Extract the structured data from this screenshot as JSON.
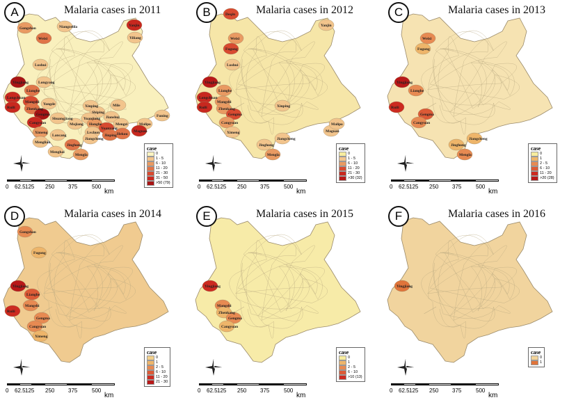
{
  "scale_labels": [
    "0",
    "62.5",
    "125",
    "250",
    "375",
    "500"
  ],
  "scale_unit": "km",
  "legend_title": "case",
  "panels": [
    {
      "letter": "A",
      "title": "Malaria cases in 2011",
      "base": "#f9f0bd",
      "legend": [
        {
          "label": "0",
          "color": "#fbf3c0"
        },
        {
          "label": "1 - 5",
          "color": "#f2c48c"
        },
        {
          "label": "6 - 10",
          "color": "#e99a62"
        },
        {
          "label": "11 - 20",
          "color": "#e07448"
        },
        {
          "label": "21 - 30",
          "color": "#d84a30"
        },
        {
          "label": "31 - 50",
          "color": "#c8281f"
        },
        {
          "label": ">50 (79)",
          "color": "#a81414"
        }
      ],
      "places": [
        {
          "name": "Gongshan",
          "fill": "#e99a62"
        },
        {
          "name": "Weixi",
          "fill": "#e07448"
        },
        {
          "name": "Niangzelila",
          "fill": "#f2c48c"
        },
        {
          "name": "Lushui",
          "fill": "#f2c48c"
        },
        {
          "name": "Longyang",
          "fill": "#f2c48c"
        },
        {
          "name": "Yingjiang",
          "fill": "#a81414"
        },
        {
          "name": "Lianghe",
          "fill": "#e07448"
        },
        {
          "name": "Longchuan",
          "fill": "#c8281f"
        },
        {
          "name": "Mangshi",
          "fill": "#d84a30"
        },
        {
          "name": "Ruili",
          "fill": "#c8281f"
        },
        {
          "name": "Zhenkang",
          "fill": "#e07448"
        },
        {
          "name": "Yongde",
          "fill": "#f2c48c"
        },
        {
          "name": "Gengma",
          "fill": "#a81414"
        },
        {
          "name": "Cangyuan",
          "fill": "#c8281f"
        },
        {
          "name": "Shuangjiang",
          "fill": "#f2c48c"
        },
        {
          "name": "Ximeng",
          "fill": "#e99a62"
        },
        {
          "name": "Lancang",
          "fill": "#f2c48c"
        },
        {
          "name": "Menglian",
          "fill": "#f2c48c"
        },
        {
          "name": "Menghai",
          "fill": "#f2c48c"
        },
        {
          "name": "Jinghong",
          "fill": "#e07448"
        },
        {
          "name": "Mengla",
          "fill": "#e99a62"
        },
        {
          "name": "Xinping",
          "fill": "#f2c48c"
        },
        {
          "name": "Shiping",
          "fill": "#f2c48c"
        },
        {
          "name": "Yuanjiang",
          "fill": "#f2c48c"
        },
        {
          "name": "Mojiang",
          "fill": "#f2c48c"
        },
        {
          "name": "Honghe",
          "fill": "#e99a62"
        },
        {
          "name": "Jianshui",
          "fill": "#f2c48c"
        },
        {
          "name": "Mile",
          "fill": "#f2c48c"
        },
        {
          "name": "Mengzi",
          "fill": "#f2c48c"
        },
        {
          "name": "Yuanyang",
          "fill": "#d84a30"
        },
        {
          "name": "Lvchun",
          "fill": "#f2c48c"
        },
        {
          "name": "Jiangcheng",
          "fill": "#f2c48c"
        },
        {
          "name": "Jinping",
          "fill": "#e07448"
        },
        {
          "name": "Hekou",
          "fill": "#e07448"
        },
        {
          "name": "Malipo",
          "fill": "#f2c48c"
        },
        {
          "name": "Funing",
          "fill": "#f2c48c"
        },
        {
          "name": "Maguan",
          "fill": "#c8281f"
        },
        {
          "name": "Yanjin",
          "fill": "#c8281f"
        },
        {
          "name": "Yiliang",
          "fill": "#f2c48c"
        }
      ]
    },
    {
      "letter": "B",
      "title": "Malaria cases in 2012",
      "base": "#f6e6a8",
      "legend": [
        {
          "label": "0",
          "color": "#f7ec9e"
        },
        {
          "label": "1 - 5",
          "color": "#f2c48c"
        },
        {
          "label": "6 - 10",
          "color": "#e99a62"
        },
        {
          "label": "11 - 20",
          "color": "#d84a30"
        },
        {
          "label": "21 - 30",
          "color": "#c8281f"
        },
        {
          "label": ">30 (32)",
          "color": "#b81818"
        }
      ],
      "places": [
        {
          "name": "Deqin",
          "fill": "#d84a30"
        },
        {
          "name": "Weixi",
          "fill": "#e99a62"
        },
        {
          "name": "Fugong",
          "fill": "#d84a30"
        },
        {
          "name": "Lushui",
          "fill": "#f2c48c"
        },
        {
          "name": "Yanjin",
          "fill": "#f2c48c"
        },
        {
          "name": "Yingjiang",
          "fill": "#b81818"
        },
        {
          "name": "Lianghe",
          "fill": "#e99a62"
        },
        {
          "name": "Longchuan",
          "fill": "#c8281f"
        },
        {
          "name": "Mangshi",
          "fill": "#e99a62"
        },
        {
          "name": "Ruili",
          "fill": "#c8281f"
        },
        {
          "name": "Zhenkang",
          "fill": "#e99a62"
        },
        {
          "name": "Gengma",
          "fill": "#d84a30"
        },
        {
          "name": "Cangyuan",
          "fill": "#e99a62"
        },
        {
          "name": "Ximeng",
          "fill": "#f2c48c"
        },
        {
          "name": "Xinping",
          "fill": "#f2c48c"
        },
        {
          "name": "Jiangcheng",
          "fill": "#f2c48c"
        },
        {
          "name": "Jinghong",
          "fill": "#f2c48c"
        },
        {
          "name": "Mengla",
          "fill": "#e99a62"
        },
        {
          "name": "Maguan",
          "fill": "#f2c48c"
        },
        {
          "name": "Malipo",
          "fill": "#f2c48c"
        }
      ]
    },
    {
      "letter": "C",
      "title": "Malaria cases in 2013",
      "base": "#f6e3b2",
      "legend": [
        {
          "label": "0",
          "color": "#f7ec9e"
        },
        {
          "label": "1",
          "color": "#eeb56a"
        },
        {
          "label": "2 - 5",
          "color": "#e78a52"
        },
        {
          "label": "6 - 10",
          "color": "#dc5a36"
        },
        {
          "label": "11 - 20",
          "color": "#cc2a20"
        },
        {
          "label": ">20 (28)",
          "color": "#b81818"
        }
      ],
      "places": [
        {
          "name": "Weixi",
          "fill": "#e78a52"
        },
        {
          "name": "Fugong",
          "fill": "#eeb56a"
        },
        {
          "name": "Yingjiang",
          "fill": "#b81818"
        },
        {
          "name": "Lianghe",
          "fill": "#e78a52"
        },
        {
          "name": "Ruili",
          "fill": "#cc2a20"
        },
        {
          "name": "Gengma",
          "fill": "#dc5a36"
        },
        {
          "name": "Cangyuan",
          "fill": "#e78a52"
        },
        {
          "name": "Jiangcheng",
          "fill": "#eeb56a"
        },
        {
          "name": "Jinghong",
          "fill": "#eeb56a"
        },
        {
          "name": "Mengla",
          "fill": "#e78a52"
        }
      ]
    },
    {
      "letter": "D",
      "title": "Malaria cases in 2014",
      "base": "#f0cb90",
      "legend": [
        {
          "label": "0",
          "color": "#f2cf8a"
        },
        {
          "label": "1",
          "color": "#eeb56a"
        },
        {
          "label": "2 - 5",
          "color": "#e78a52"
        },
        {
          "label": "6 - 10",
          "color": "#dc5a36"
        },
        {
          "label": "11 - 20",
          "color": "#cc2a20"
        },
        {
          "label": "21 - 30",
          "color": "#b81818"
        }
      ],
      "places": [
        {
          "name": "Gongshan",
          "fill": "#e78a52"
        },
        {
          "name": "Fugong",
          "fill": "#eeb56a"
        },
        {
          "name": "Yingjiang",
          "fill": "#b81818"
        },
        {
          "name": "Lianghe",
          "fill": "#dc5a36"
        },
        {
          "name": "Mangshi",
          "fill": "#e78a52"
        },
        {
          "name": "Ruili",
          "fill": "#cc2a20"
        },
        {
          "name": "Gengma",
          "fill": "#e78a52"
        },
        {
          "name": "Cangyuan",
          "fill": "#e78a52"
        },
        {
          "name": "Ximeng",
          "fill": "#eeb56a"
        }
      ]
    },
    {
      "letter": "E",
      "title": "Malaria cases in 2015",
      "base": "#f7eba8",
      "legend": [
        {
          "label": "0",
          "color": "#f7ec9e"
        },
        {
          "label": "1",
          "color": "#eeb56a"
        },
        {
          "label": "2 - 5",
          "color": "#e78a52"
        },
        {
          "label": "6 - 10",
          "color": "#dc5a36"
        },
        {
          "label": ">10 (13)",
          "color": "#cc2a20"
        }
      ],
      "places": [
        {
          "name": "Yingjiang",
          "fill": "#cc2a20"
        },
        {
          "name": "Mangshi",
          "fill": "#e78a52"
        },
        {
          "name": "Zhenkang",
          "fill": "#eeb56a"
        },
        {
          "name": "Gengma",
          "fill": "#e78a52"
        },
        {
          "name": "Cangyuan",
          "fill": "#eeb56a"
        }
      ]
    },
    {
      "letter": "F",
      "title": "Malaria cases in 2016",
      "base": "#f1d49e",
      "legend": [
        {
          "label": "0",
          "color": "#f2d49a"
        },
        {
          "label": "1",
          "color": "#e0743a"
        }
      ],
      "places": [
        {
          "name": "Yingjiang",
          "fill": "#e0743a"
        }
      ]
    }
  ]
}
